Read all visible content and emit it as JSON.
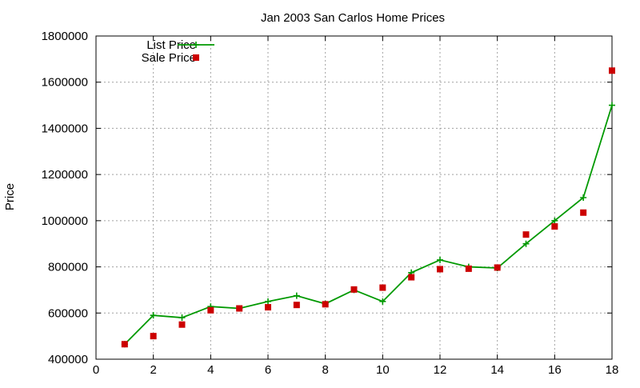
{
  "chart_data": {
    "type": "line",
    "title": "Jan 2003 San Carlos Home Prices",
    "xlabel": "",
    "ylabel": "Price",
    "xlim": [
      0,
      18
    ],
    "ylim": [
      400000,
      1800000
    ],
    "xticks": [
      0,
      2,
      4,
      6,
      8,
      10,
      12,
      14,
      16,
      18
    ],
    "yticks": [
      400000,
      600000,
      800000,
      1000000,
      1200000,
      1400000,
      1600000,
      1800000
    ],
    "grid": true,
    "legend_position": "top-left",
    "series": [
      {
        "name": "List Price",
        "style": "line+cross",
        "color": "#009900",
        "x": [
          1,
          2,
          3,
          4,
          5,
          6,
          7,
          8,
          9,
          10,
          11,
          12,
          13,
          14,
          15,
          16,
          17,
          18
        ],
        "y": [
          465000,
          590000,
          580000,
          628000,
          620000,
          650000,
          675000,
          640000,
          700000,
          650000,
          775000,
          830000,
          800000,
          795000,
          900000,
          1000000,
          1100000,
          1500000
        ]
      },
      {
        "name": "Sale Price",
        "style": "square",
        "color": "#cc0000",
        "x": [
          1,
          2,
          3,
          4,
          5,
          6,
          7,
          8,
          9,
          10,
          11,
          12,
          13,
          14,
          15,
          16,
          17,
          18
        ],
        "y": [
          465000,
          500000,
          550000,
          612000,
          620000,
          625000,
          635000,
          638000,
          702000,
          710000,
          755000,
          790000,
          792000,
          797000,
          940000,
          975000,
          1035000,
          1650000
        ]
      }
    ]
  }
}
